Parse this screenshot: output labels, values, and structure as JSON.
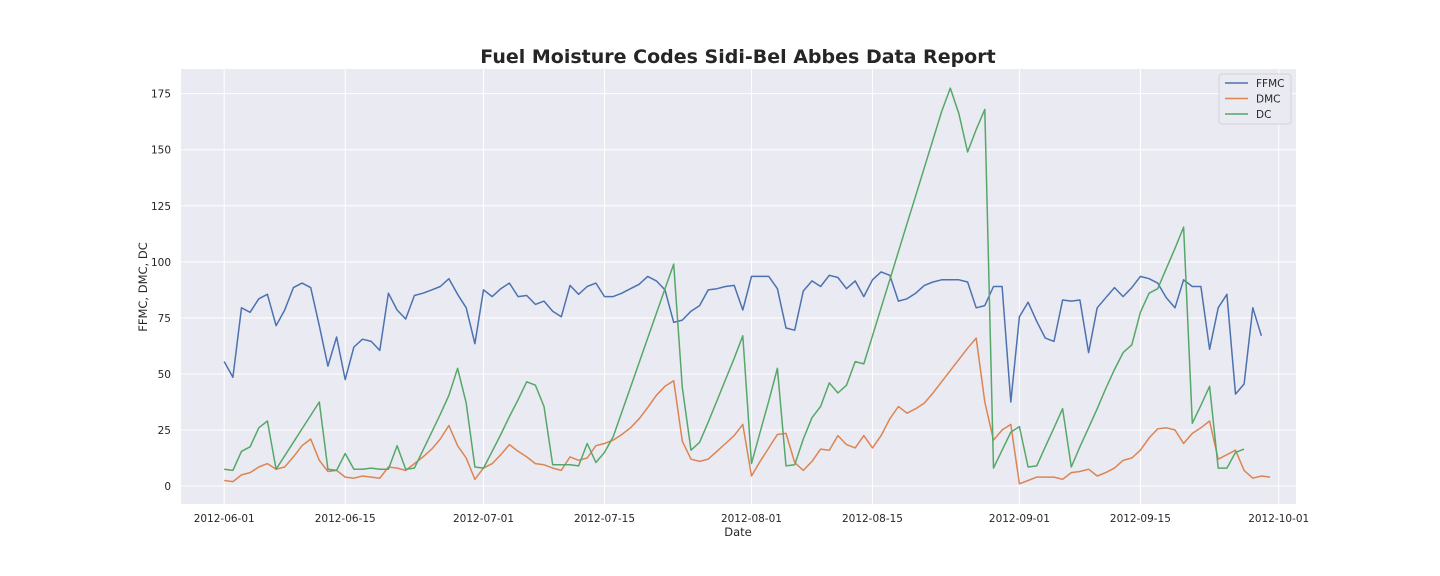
{
  "chart_data": {
    "type": "line",
    "title": "Fuel Moisture Codes Sidi-Bel Abbes Data Report",
    "xlabel": "Date",
    "ylabel": "FFMC, DMC, DC",
    "grid": true,
    "legend_position": "top-right",
    "x_start": "2012-06-01",
    "x_step_days": 1,
    "xlim": [
      "2012-05-27",
      "2012-10-03"
    ],
    "ylim": [
      -8,
      186
    ],
    "x_ticks": [
      "2012-06-01",
      "2012-06-15",
      "2012-07-01",
      "2012-07-15",
      "2012-08-01",
      "2012-08-15",
      "2012-09-01",
      "2012-09-15",
      "2012-10-01"
    ],
    "y_ticks": [
      0,
      25,
      50,
      75,
      100,
      125,
      150,
      175
    ],
    "series": [
      {
        "name": "FFMC",
        "color": "#4C72B0",
        "values": [
          55.5,
          48.5,
          79.5,
          77.5,
          83.5,
          85.5,
          71.5,
          78.5,
          88.5,
          90.5,
          88.5,
          71.5,
          53.5,
          66.5,
          47.5,
          62.0,
          65.5,
          64.5,
          60.5,
          86.0,
          78.5,
          74.5,
          85.0,
          86.0,
          87.5,
          89.0,
          92.5,
          85.5,
          79.5,
          63.5,
          87.5,
          84.5,
          88.0,
          90.5,
          84.5,
          85.0,
          81.0,
          82.5,
          78.0,
          75.5,
          89.5,
          85.5,
          89.0,
          90.5,
          84.5,
          84.5,
          86.0,
          88.0,
          90.0,
          93.5,
          91.5,
          87.5,
          73.0,
          74.0,
          78.0,
          80.5,
          87.5,
          88.0,
          89.0,
          89.5,
          78.5,
          93.5,
          93.5,
          93.5,
          88.0,
          70.5,
          69.5,
          87.0,
          91.5,
          89.0,
          94.0,
          93.0,
          88.0,
          91.5,
          84.5,
          92.0,
          95.5,
          94.0,
          82.5,
          83.5,
          86.0,
          89.5,
          91.0,
          92.0,
          92.0,
          92.0,
          91.0,
          79.5,
          80.5,
          89.0,
          89.0,
          37.5,
          75.5,
          82.0,
          73.5,
          66.0,
          64.5,
          83.0,
          82.5,
          83.0,
          59.5,
          79.5,
          84.0,
          88.5,
          84.5,
          88.5,
          93.5,
          92.5,
          90.5,
          84.0,
          79.5,
          92.0,
          89.0,
          89.0,
          61.0,
          79.5,
          85.5,
          41.0,
          45.5,
          79.5,
          67.0
        ]
      },
      {
        "name": "DMC",
        "color": "#DD8452",
        "values": [
          2.5,
          2.0,
          5.0,
          6.0,
          8.5,
          10.0,
          7.5,
          8.5,
          13.0,
          18.0,
          21.0,
          11.5,
          6.5,
          7.0,
          4.0,
          3.5,
          4.5,
          4.0,
          3.5,
          8.5,
          8.0,
          7.0,
          10.0,
          13.0,
          16.5,
          21.0,
          27.0,
          18.0,
          12.5,
          3.0,
          8.0,
          10.0,
          14.0,
          18.5,
          15.5,
          13.0,
          10.0,
          9.5,
          8.0,
          7.0,
          13.0,
          11.5,
          12.5,
          18.0,
          19.0,
          20.5,
          23.0,
          26.0,
          30.0,
          35.0,
          40.5,
          44.5,
          47.0,
          20.0,
          12.0,
          11.0,
          12.0,
          15.5,
          19.0,
          22.5,
          27.5,
          4.5,
          11.0,
          17.0,
          23.0,
          23.5,
          10.5,
          7.0,
          11.0,
          16.5,
          16.0,
          22.5,
          18.5,
          17.0,
          22.5,
          17.0,
          22.5,
          30.0,
          35.5,
          32.5,
          34.5,
          37.0,
          41.5,
          46.5,
          51.5,
          56.5,
          61.5,
          66.0,
          37.5,
          20.5,
          25.0,
          27.5,
          1.0,
          2.5,
          4.0,
          4.0,
          4.0,
          3.0,
          6.0,
          6.5,
          7.5,
          4.5,
          6.0,
          8.0,
          11.5,
          12.5,
          16.0,
          21.5,
          25.5,
          26.0,
          25.0,
          19.0,
          23.5,
          26.0,
          29.0,
          12.0,
          14.0,
          16.0,
          7.0,
          3.5,
          4.5,
          4.0
        ]
      },
      {
        "name": "DC",
        "color": "#55A868",
        "values": [
          7.5,
          7.0,
          15.5,
          17.5,
          26.0,
          29.0,
          7.5,
          13.5,
          19.5,
          25.5,
          31.5,
          37.5,
          7.5,
          7.0,
          14.5,
          7.5,
          7.5,
          8.0,
          7.5,
          7.5,
          18.0,
          7.5,
          8.0,
          16.0,
          24.0,
          32.0,
          40.5,
          52.5,
          37.0,
          8.5,
          8.0,
          15.5,
          23.0,
          31.0,
          38.5,
          46.5,
          45.0,
          35.5,
          9.5,
          9.5,
          9.5,
          9.0,
          19.0,
          10.5,
          15.0,
          22.0,
          33.0,
          44.0,
          55.0,
          66.0,
          77.0,
          88.0,
          99.0,
          44.0,
          16.0,
          19.5,
          28.5,
          38.0,
          47.5,
          57.0,
          67.0,
          10.0,
          24.0,
          38.0,
          52.5,
          9.0,
          9.5,
          21.0,
          30.5,
          35.5,
          46.0,
          41.5,
          45.0,
          55.5,
          54.5,
          67.0,
          79.5,
          92.0,
          104.5,
          117.0,
          129.5,
          142.0,
          154.5,
          167.0,
          177.5,
          166.0,
          149.0,
          159.0,
          168.0,
          8.0,
          16.0,
          24.0,
          26.5,
          8.5,
          9.0,
          17.5,
          26.0,
          34.5,
          8.5,
          17.5,
          26.0,
          34.5,
          43.5,
          52.0,
          59.5,
          63.0,
          77.5,
          86.0,
          88.0,
          97.0,
          106.0,
          115.5,
          28.0,
          36.0,
          44.5,
          8.0,
          8.0,
          15.0,
          16.5
        ]
      }
    ]
  }
}
